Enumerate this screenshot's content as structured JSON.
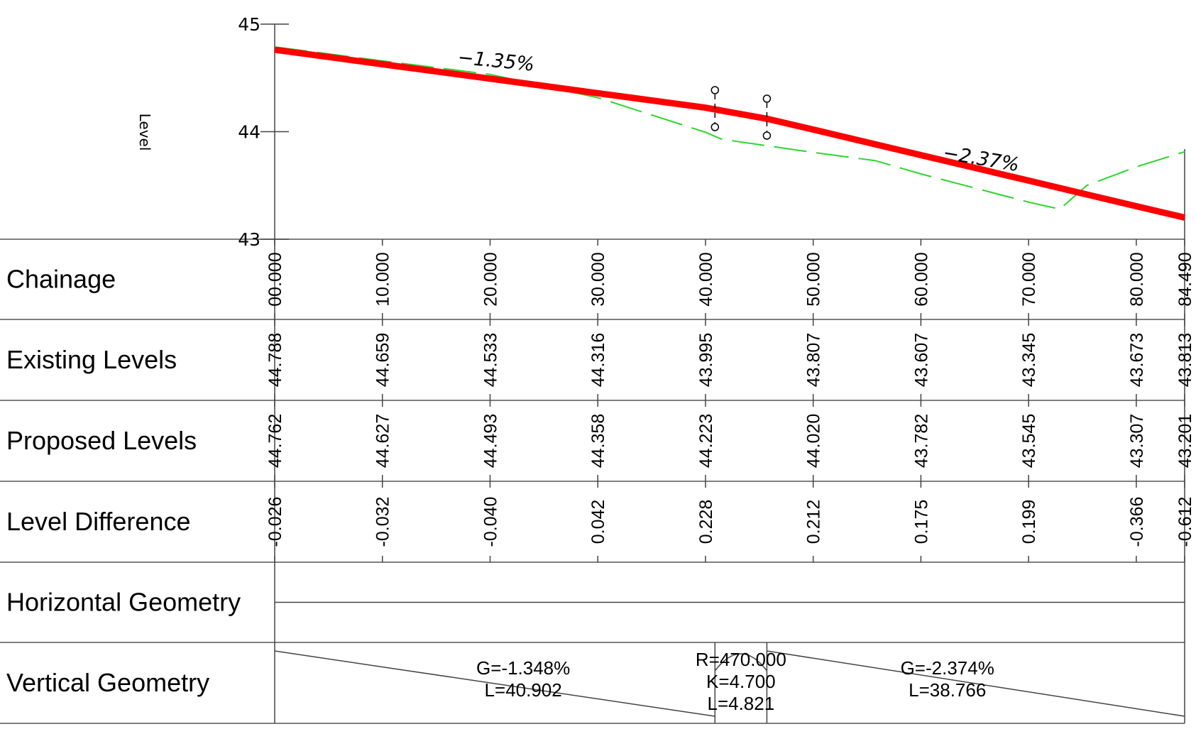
{
  "chart_data": {
    "type": "line",
    "ylabel": "Level",
    "y_ticks": [
      "45",
      "44",
      "43"
    ],
    "ylim": [
      43,
      45
    ],
    "xlim": [
      0,
      84.49
    ],
    "stations": [
      0,
      10,
      20,
      30,
      40,
      50,
      60,
      70,
      80,
      84.49
    ],
    "series": [
      {
        "key": "existing",
        "color": "#2bd62b",
        "style": "dashed",
        "points": [
          [
            0,
            44.788
          ],
          [
            10,
            44.659
          ],
          [
            20,
            44.533
          ],
          [
            30,
            44.316
          ],
          [
            40,
            43.995
          ],
          [
            41.5,
            43.93
          ],
          [
            50,
            43.807
          ],
          [
            55.8,
            43.73
          ],
          [
            60,
            43.607
          ],
          [
            70,
            43.345
          ],
          [
            72.9,
            43.28
          ],
          [
            75.4,
            43.5
          ],
          [
            80,
            43.673
          ],
          [
            84.49,
            43.813
          ]
        ]
      },
      {
        "key": "proposed",
        "color": "#ff0000",
        "style": "solid",
        "points": [
          [
            0,
            44.762
          ],
          [
            10,
            44.627
          ],
          [
            20,
            44.493
          ],
          [
            30,
            44.358
          ],
          [
            40,
            44.223
          ],
          [
            45.7,
            44.12
          ],
          [
            50,
            44.02
          ],
          [
            60,
            43.782
          ],
          [
            70,
            43.545
          ],
          [
            80,
            43.307
          ],
          [
            84.49,
            43.201
          ]
        ]
      }
    ],
    "grade_labels": [
      {
        "text": "−1.35%",
        "x": 20.5,
        "y": 44.6,
        "angle": 5.5
      },
      {
        "text": "−2.37%",
        "x": 65.5,
        "y": 43.69,
        "angle": 9.5
      }
    ],
    "vc_markers": [
      40.88,
      45.7
    ]
  },
  "table": {
    "rows": [
      {
        "label": "Chainage",
        "values": [
          "00.000",
          "10.000",
          "20.000",
          "30.000",
          "40.000",
          "50.000",
          "60.000",
          "70.000",
          "80.000",
          "84.490"
        ]
      },
      {
        "label": "Existing Levels",
        "values": [
          "44.788",
          "44.659",
          "44.533",
          "44.316",
          "43.995",
          "43.807",
          "43.607",
          "43.345",
          "43.673",
          "43.813"
        ]
      },
      {
        "label": "Proposed Levels",
        "values": [
          "44.762",
          "44.627",
          "44.493",
          "44.358",
          "44.223",
          "44.020",
          "43.782",
          "43.545",
          "43.307",
          "43.201"
        ]
      },
      {
        "label": "Level Difference",
        "values": [
          "-0.026",
          "-0.032",
          "-0.040",
          "0.042",
          "0.228",
          "0.212",
          "0.175",
          "0.199",
          "-0.366",
          "-0.612"
        ]
      }
    ],
    "horizontal_geometry": {
      "label": "Horizontal Geometry"
    },
    "vertical_geometry": {
      "label": "Vertical Geometry",
      "segments": [
        {
          "lines": [
            "G=-1.348%",
            "L=40.902"
          ]
        },
        {
          "lines": [
            "R=470.000",
            "K=4.700",
            "L=4.821"
          ]
        },
        {
          "lines": [
            "G=-2.374%",
            "L=38.766"
          ]
        }
      ]
    }
  }
}
